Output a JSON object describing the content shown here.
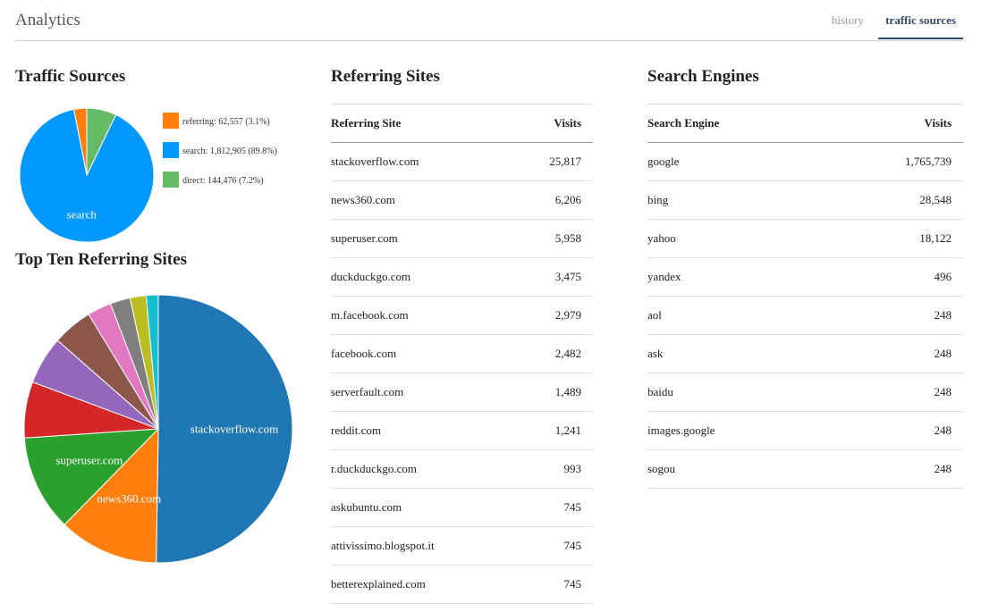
{
  "app": {
    "title": "Analytics"
  },
  "tabs": [
    {
      "label": "history",
      "active": false
    },
    {
      "label": "traffic sources",
      "active": true
    }
  ],
  "traffic_sources": {
    "title": "Traffic Sources",
    "legend": [
      {
        "label": "referring: 62,557 (3.1%)",
        "color": "#ff7f0e"
      },
      {
        "label": "search: 1,812,905 (89.8%)",
        "color": "#0099ff"
      },
      {
        "label": "direct: 144,476 (7.2%)",
        "color": "#66bb66"
      }
    ]
  },
  "top_ten": {
    "title": "Top Ten Referring Sites"
  },
  "referring_sites": {
    "title": "Referring Sites",
    "col_site": "Referring Site",
    "col_visits": "Visits",
    "rows": [
      {
        "site": "stackoverflow.com",
        "visits": "25,817"
      },
      {
        "site": "news360.com",
        "visits": "6,206"
      },
      {
        "site": "superuser.com",
        "visits": "5,958"
      },
      {
        "site": "duckduckgo.com",
        "visits": "3,475"
      },
      {
        "site": "m.facebook.com",
        "visits": "2,979"
      },
      {
        "site": "facebook.com",
        "visits": "2,482"
      },
      {
        "site": "serverfault.com",
        "visits": "1,489"
      },
      {
        "site": "reddit.com",
        "visits": "1,241"
      },
      {
        "site": "r.duckduckgo.com",
        "visits": "993"
      },
      {
        "site": "askubuntu.com",
        "visits": "745"
      },
      {
        "site": "attivissimo.blogspot.it",
        "visits": "745"
      },
      {
        "site": "betterexplained.com",
        "visits": "745"
      }
    ]
  },
  "search_engines": {
    "title": "Search Engines",
    "col_engine": "Search Engine",
    "col_visits": "Visits",
    "rows": [
      {
        "engine": "google",
        "visits": "1,765,739"
      },
      {
        "engine": "bing",
        "visits": "28,548"
      },
      {
        "engine": "yahoo",
        "visits": "18,122"
      },
      {
        "engine": "yandex",
        "visits": "496"
      },
      {
        "engine": "aol",
        "visits": "248"
      },
      {
        "engine": "ask",
        "visits": "248"
      },
      {
        "engine": "baidu",
        "visits": "248"
      },
      {
        "engine": "images.google",
        "visits": "248"
      },
      {
        "engine": "sogou",
        "visits": "248"
      }
    ]
  },
  "chart_data": [
    {
      "type": "pie",
      "title": "Traffic Sources",
      "slices": [
        {
          "name": "referring",
          "value": 62557,
          "percent": 3.1,
          "color": "#ff7f0e",
          "label": ""
        },
        {
          "name": "search",
          "value": 1812905,
          "percent": 89.8,
          "color": "#0099ff",
          "label": "search"
        },
        {
          "name": "direct",
          "value": 144476,
          "percent": 7.2,
          "color": "#66bb66",
          "label": ""
        }
      ]
    },
    {
      "type": "pie",
      "title": "Top Ten Referring Sites",
      "slices": [
        {
          "name": "stackoverflow.com",
          "value": 25817,
          "color": "#1f77b4",
          "label": "stackoverflow.com"
        },
        {
          "name": "news360.com",
          "value": 6206,
          "color": "#ff7f0e",
          "label": "news360.com"
        },
        {
          "name": "superuser.com",
          "value": 5958,
          "color": "#2ca02c",
          "label": "superuser.com"
        },
        {
          "name": "duckduckgo.com",
          "value": 3475,
          "color": "#d62728",
          "label": ""
        },
        {
          "name": "m.facebook.com",
          "value": 2979,
          "color": "#9467bd",
          "label": ""
        },
        {
          "name": "facebook.com",
          "value": 2482,
          "color": "#8c564b",
          "label": ""
        },
        {
          "name": "serverfault.com",
          "value": 1489,
          "color": "#e377c2",
          "label": ""
        },
        {
          "name": "reddit.com",
          "value": 1241,
          "color": "#7f7f7f",
          "label": ""
        },
        {
          "name": "r.duckduckgo.com",
          "value": 993,
          "color": "#bcbd22",
          "label": ""
        },
        {
          "name": "askubuntu.com",
          "value": 745,
          "color": "#17becf",
          "label": ""
        }
      ]
    }
  ]
}
